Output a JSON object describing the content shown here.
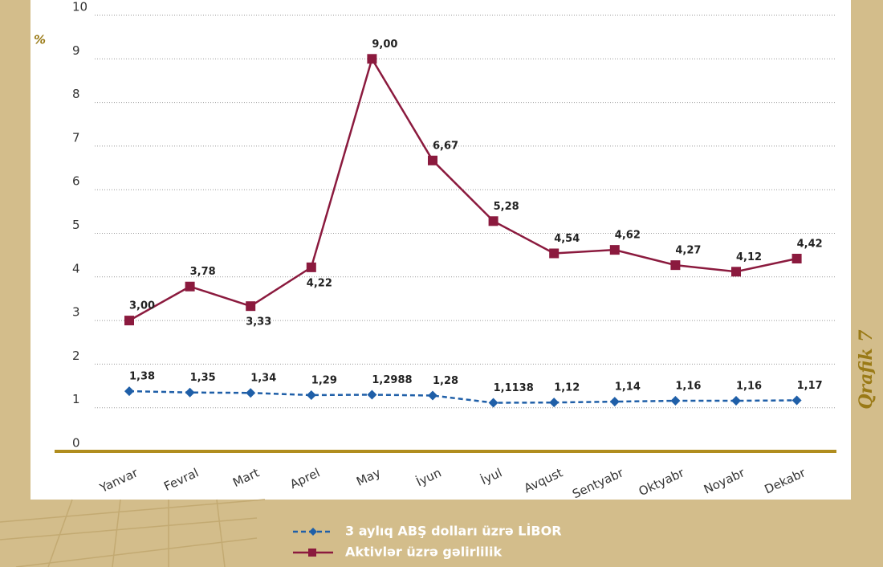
{
  "chart_data": {
    "type": "line",
    "y_label": "%",
    "caption": "Qrafik 7",
    "categories": [
      "Yanvar",
      "Fevral",
      "Mart",
      "Aprel",
      "May",
      "İyun",
      "İyul",
      "Avqust",
      "Sentyabr",
      "Oktyabr",
      "Noyabr",
      "Dekabr"
    ],
    "series": [
      {
        "name": "3 aylıq ABŞ dolları üzrə LİBOR",
        "color": "#1f5fa8",
        "marker": "diamond",
        "dashed": true,
        "values": [
          1.38,
          1.35,
          1.34,
          1.29,
          1.2988,
          1.28,
          1.1138,
          1.12,
          1.14,
          1.16,
          1.16,
          1.17
        ],
        "value_labels": [
          "1,38",
          "1,35",
          "1,34",
          "1,29",
          "1,2988",
          "1,28",
          "1,1138",
          "1,12",
          "1,14",
          "1,16",
          "1,16",
          "1,17"
        ]
      },
      {
        "name": "Aktivlər üzrə gəlirlilik",
        "color": "#8b1a3e",
        "marker": "square",
        "dashed": false,
        "values": [
          3.0,
          3.78,
          3.33,
          4.22,
          9.0,
          6.67,
          5.28,
          4.54,
          4.62,
          4.27,
          4.12,
          4.42
        ],
        "value_labels": [
          "3,00",
          "3,78",
          "3,33",
          "4,22",
          "9,00",
          "6,67",
          "5,28",
          "4,54",
          "4,62",
          "4,27",
          "4,12",
          "4,42"
        ]
      }
    ],
    "ylim": [
      0,
      10
    ],
    "yticks": [
      0,
      1,
      2,
      3,
      4,
      5,
      6,
      7,
      8,
      9,
      10
    ],
    "grid": true
  }
}
